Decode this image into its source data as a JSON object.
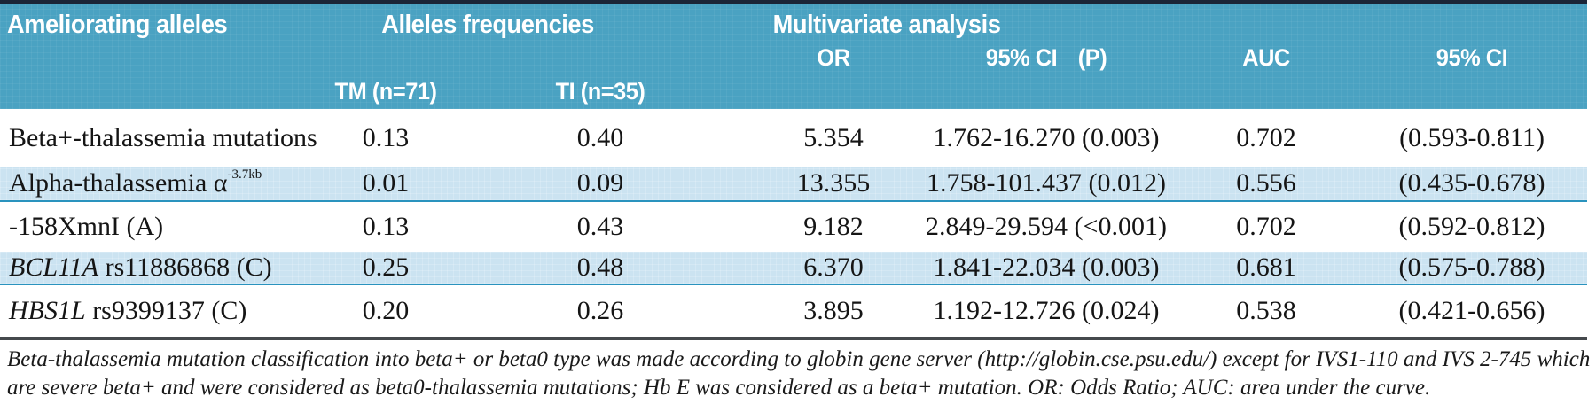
{
  "colors": {
    "topline": "#1b2638",
    "header": "#4aa2c2",
    "altrow": "#cbe3f1",
    "sepline": "#2a93be",
    "bottomline": "#45494d",
    "text": "#151515"
  },
  "header": {
    "ameliorating": "Ameliorating alleles",
    "alleles_frequencies": "Alleles frequencies",
    "multivariate": "Multivariate analysis",
    "or": "OR",
    "ci_p_ci": "95% CI",
    "ci_p_p": "(P)",
    "auc": "AUC",
    "ci2": "95% CI",
    "tm": "TM (n=71)",
    "ti": "TI (n=35)"
  },
  "rows": [
    {
      "label": {
        "em": "",
        "text": "Beta+-thalassemia mutations",
        "sup": ""
      },
      "tm": "0.13",
      "ti": "0.40",
      "or": "5.354",
      "ci_p": "1.762-16.270 (0.003)",
      "auc": "0.702",
      "ci": "(0.593-0.811)"
    },
    {
      "label": {
        "em": "",
        "text": "Alpha-thalassemia α",
        "sup": "-3.7kb"
      },
      "tm": "0.01",
      "ti": "0.09",
      "or": "13.355",
      "ci_p": "1.758-101.437 (0.012)",
      "auc": "0.556",
      "ci": "(0.435-0.678)"
    },
    {
      "label": {
        "em": "",
        "text": "-158XmnI (A)",
        "sup": ""
      },
      "tm": "0.13",
      "ti": "0.43",
      "or": "9.182",
      "ci_p": "2.849-29.594 (<0.001)",
      "auc": "0.702",
      "ci": "(0.592-0.812)"
    },
    {
      "label": {
        "em": "BCL11A",
        "text": " rs11886868 (C)",
        "sup": ""
      },
      "tm": "0.25",
      "ti": "0.48",
      "or": "6.370",
      "ci_p": "1.841-22.034 (0.003)",
      "auc": "0.681",
      "ci": "(0.575-0.788)"
    },
    {
      "label": {
        "em": "HBS1L",
        "text": " rs9399137 (C)",
        "sup": ""
      },
      "tm": "0.20",
      "ti": "0.26",
      "or": "3.895",
      "ci_p": "1.192-12.726 (0.024)",
      "auc": "0.538",
      "ci": "(0.421-0.656)"
    }
  ],
  "footnote": {
    "line1": "Beta-thalassemia mutation classification into beta+ or beta0 type was made according to globin gene server (http://globin.cse.psu.edu/) except for IVS1-110 and IVS 2-745 which",
    "line2": "are severe beta+ and were considered as beta0-thalassemia mutations; Hb E was considered as a beta+ mutation. OR: Odds Ratio; AUC: area under the curve."
  }
}
